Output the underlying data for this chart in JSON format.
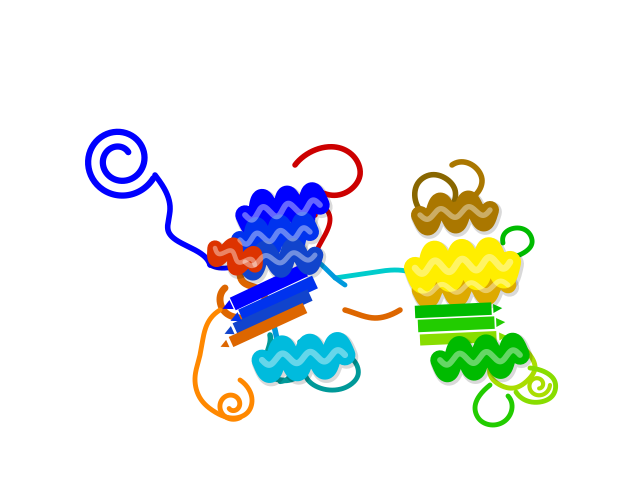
{
  "bg_color": "#ffffff",
  "figsize": [
    6.4,
    4.8
  ],
  "dpi": 100,
  "colors": {
    "blue": "#0000FF",
    "blue2": "#0033EE",
    "blue3": "#1144CC",
    "cyan_blue": "#0099DD",
    "cyan": "#00BBDD",
    "teal": "#009999",
    "cyan_light": "#00CCCC",
    "skyblue": "#00AAFF",
    "green": "#00BB00",
    "green2": "#22CC00",
    "lime": "#88DD00",
    "yellow_green": "#AADD00",
    "yellow": "#FFEE00",
    "gold": "#DDAA00",
    "orange": "#FF8800",
    "dark_orange": "#DD6600",
    "brown": "#AA7700",
    "dark_brown": "#886600",
    "red_orange": "#DD3300",
    "red": "#CC0000",
    "dark_red": "#AA0000"
  },
  "lw_helix": 14,
  "lw_strand": 10,
  "lw_loop": 3.5,
  "lw_loop_thick": 5
}
